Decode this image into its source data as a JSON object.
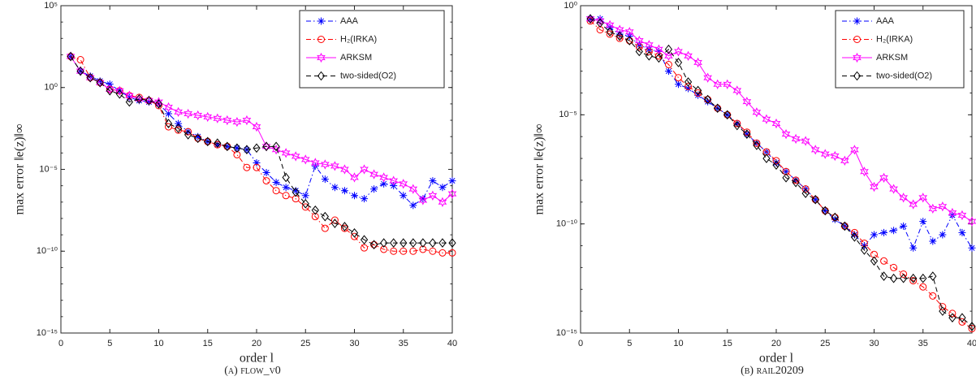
{
  "chart_data": [
    {
      "type": "line",
      "log_y": true,
      "legend": "upper right",
      "caption": "(a) flow_v0",
      "xlabel": "order l",
      "ylabel": "max error ‖e(z)‖∞",
      "xlim": [
        0,
        40
      ],
      "xticks": [
        0,
        5,
        10,
        15,
        20,
        25,
        30,
        35,
        40
      ],
      "ylim": [
        1e-15,
        100000
      ],
      "yticks": [
        {
          "value": 1e-15,
          "label": "10⁻¹⁵"
        },
        {
          "value": 1e-10,
          "label": "10⁻¹⁰"
        },
        {
          "value": 1e-05,
          "label": "10⁻⁵"
        },
        {
          "value": 1,
          "label": "10⁰"
        },
        {
          "value": 100000,
          "label": "10⁵"
        }
      ],
      "x": [
        1,
        2,
        3,
        4,
        5,
        6,
        7,
        8,
        9,
        10,
        11,
        12,
        13,
        14,
        15,
        16,
        17,
        18,
        19,
        20,
        21,
        22,
        23,
        24,
        25,
        26,
        27,
        28,
        29,
        30,
        31,
        32,
        33,
        34,
        35,
        36,
        37,
        38,
        39,
        40
      ],
      "series": [
        {
          "name": "AAA",
          "color": "#0000ff",
          "marker": "asterisk",
          "dash": "dashdot",
          "values": [
            79,
            10,
            5,
            2.5,
            1.6,
            0.63,
            0.25,
            0.16,
            0.13,
            0.1,
            0.025,
            0.0063,
            0.002,
            0.001,
            0.0005,
            0.00032,
            0.00025,
            0.0002,
            0.00016,
            2.5e-05,
            6.3e-06,
            1.6e-06,
            7.9e-07,
            5e-07,
            2.5e-07,
            1.6e-05,
            2.5e-06,
            7.9e-07,
            5e-07,
            2.5e-07,
            1.6e-07,
            6.3e-07,
            1.3e-06,
            1e-06,
            2.5e-07,
            6.3e-08,
            1.6e-07,
            2e-06,
            7.9e-07,
            2e-06
          ]
        },
        {
          "name": "H₂(IRKA)",
          "color": "#ff0000",
          "marker": "circle",
          "dash": "dashdot",
          "values": [
            79,
            50,
            4,
            2,
            0.79,
            0.63,
            0.32,
            0.25,
            0.16,
            0.079,
            0.004,
            0.0025,
            0.002,
            0.00079,
            0.0005,
            0.00032,
            0.00025,
            7.9e-05,
            1.3e-05,
            1.3e-05,
            2e-06,
            5e-07,
            2.5e-07,
            1.6e-07,
            5e-08,
            1.3e-08,
            2.5e-09,
            7.9e-09,
            2.5e-09,
            7.9e-10,
            1.6e-10,
            2.5e-10,
            1.3e-10,
            1e-10,
            1e-10,
            1e-10,
            1.3e-10,
            1e-10,
            7.9e-11,
            7.9e-11
          ]
        },
        {
          "name": "ARKSM",
          "color": "#ff00ff",
          "marker": "hexagram",
          "dash": "solid",
          "values": [
            79,
            10,
            4,
            2,
            0.79,
            0.63,
            0.32,
            0.2,
            0.16,
            0.13,
            0.063,
            0.032,
            0.025,
            0.02,
            0.016,
            0.013,
            0.01,
            0.0079,
            0.01,
            0.004,
            0.00025,
            0.00016,
            0.0001,
            6.3e-05,
            4e-05,
            2.5e-05,
            2e-05,
            1.6e-05,
            1e-05,
            3.2e-06,
            1e-05,
            5e-06,
            3.2e-06,
            2e-06,
            1.3e-06,
            6.3e-07,
            1.3e-07,
            2.5e-07,
            1e-07,
            3.2e-07
          ]
        },
        {
          "name": "two-sided(O2)",
          "color": "#000000",
          "marker": "diamond",
          "dash": "dashed",
          "values": [
            79,
            10,
            4,
            2,
            0.63,
            0.4,
            0.13,
            0.2,
            0.16,
            0.1,
            0.0063,
            0.0032,
            0.0013,
            0.00079,
            0.0005,
            0.0004,
            0.00025,
            0.0002,
            0.00016,
            0.0002,
            0.00025,
            0.00025,
            3.2e-06,
            4e-07,
            7.9e-08,
            3.2e-08,
            1.3e-08,
            5e-09,
            3.2e-09,
            1.3e-09,
            5e-10,
            2.5e-10,
            3.2e-10,
            3.2e-10,
            3.2e-10,
            3.2e-10,
            3.2e-10,
            3.2e-10,
            3.2e-10,
            3.2e-10
          ]
        }
      ]
    },
    {
      "type": "line",
      "log_y": true,
      "legend": "upper right",
      "caption": "(b) rail20209",
      "xlabel": "order l",
      "ylabel": "max error ‖e(z)‖∞",
      "xlim": [
        0,
        40
      ],
      "xticks": [
        0,
        5,
        10,
        15,
        20,
        25,
        30,
        35,
        40
      ],
      "ylim": [
        1e-15,
        1
      ],
      "yticks": [
        {
          "value": 1e-15,
          "label": "10⁻¹⁵"
        },
        {
          "value": 1e-10,
          "label": "10⁻¹⁰"
        },
        {
          "value": 1e-05,
          "label": "10⁻⁵"
        },
        {
          "value": 1,
          "label": "10⁰"
        }
      ],
      "x": [
        1,
        2,
        3,
        4,
        5,
        6,
        7,
        8,
        9,
        10,
        11,
        12,
        13,
        14,
        15,
        16,
        17,
        18,
        19,
        20,
        21,
        22,
        23,
        24,
        25,
        26,
        27,
        28,
        29,
        30,
        31,
        32,
        33,
        34,
        35,
        36,
        37,
        38,
        39,
        40
      ],
      "series": [
        {
          "name": "AAA",
          "color": "#0000ff",
          "marker": "asterisk",
          "dash": "dashdot",
          "values": [
            0.25,
            0.25,
            0.1,
            0.05,
            0.04,
            0.016,
            0.01,
            0.0079,
            0.001,
            0.00025,
            0.00016,
            7.9e-05,
            4e-05,
            2e-05,
            1e-05,
            4e-06,
            1.3e-06,
            5e-07,
            2e-07,
            6.3e-08,
            2.5e-08,
            1e-08,
            4e-09,
            1.3e-09,
            4e-10,
            1.6e-10,
            7.9e-11,
            3.2e-11,
            1e-11,
            3.2e-11,
            4e-11,
            5e-11,
            7.9e-11,
            7.9e-12,
            1.3e-10,
            1.6e-11,
            3.2e-11,
            2.5e-10,
            4e-11,
            7.9e-12
          ]
        },
        {
          "name": "H₂(IRKA)",
          "color": "#ff0000",
          "marker": "circle",
          "dash": "dashdot",
          "values": [
            0.2,
            0.079,
            0.05,
            0.032,
            0.025,
            0.013,
            0.0079,
            0.005,
            0.002,
            0.0005,
            0.0002,
            0.0001,
            5e-05,
            2e-05,
            1e-05,
            4e-06,
            1.6e-06,
            5e-07,
            2e-07,
            7.9e-08,
            2.5e-08,
            1e-08,
            4e-09,
            1.3e-09,
            4e-10,
            2e-10,
            7.9e-11,
            4e-11,
            1.3e-11,
            4e-12,
            2e-12,
            1e-12,
            5e-13,
            2.5e-13,
            1.3e-13,
            5e-14,
            1.6e-14,
            7.9e-15,
            3.2e-15,
            1.6e-15
          ]
        },
        {
          "name": "ARKSM",
          "color": "#ff00ff",
          "marker": "hexagram",
          "dash": "solid",
          "values": [
            0.25,
            0.2,
            0.13,
            0.079,
            0.063,
            0.025,
            0.016,
            0.01,
            0.005,
            0.0079,
            0.005,
            0.0025,
            0.0005,
            0.00025,
            0.00025,
            0.00013,
            4e-05,
            1.3e-05,
            6.3e-06,
            4e-06,
            1.3e-06,
            7.9e-07,
            6.3e-07,
            2.5e-07,
            1.6e-07,
            1.3e-07,
            7.9e-08,
            2.5e-07,
            2.5e-08,
            5e-09,
            1.3e-08,
            4e-09,
            1.6e-09,
            7.9e-10,
            1.6e-09,
            5e-10,
            6.3e-10,
            3.2e-10,
            2.5e-10,
            1.3e-10
          ]
        },
        {
          "name": "two-sided(O2)",
          "color": "#000000",
          "marker": "diamond",
          "dash": "dashed",
          "values": [
            0.25,
            0.16,
            0.063,
            0.04,
            0.025,
            0.0079,
            0.005,
            0.004,
            0.01,
            0.0025,
            0.00032,
            0.00013,
            5e-05,
            2e-05,
            1e-05,
            3.2e-06,
            1.3e-06,
            4e-07,
            1e-07,
            5e-08,
            1.3e-08,
            7.9e-09,
            2.5e-09,
            1.3e-09,
            4e-10,
            2e-10,
            7.9e-11,
            2.5e-11,
            6.3e-12,
            2e-12,
            4e-13,
            3.2e-13,
            3.2e-13,
            3.2e-13,
            3.2e-13,
            4e-13,
            1e-14,
            5e-15,
            5e-15,
            2e-15
          ]
        }
      ]
    }
  ]
}
